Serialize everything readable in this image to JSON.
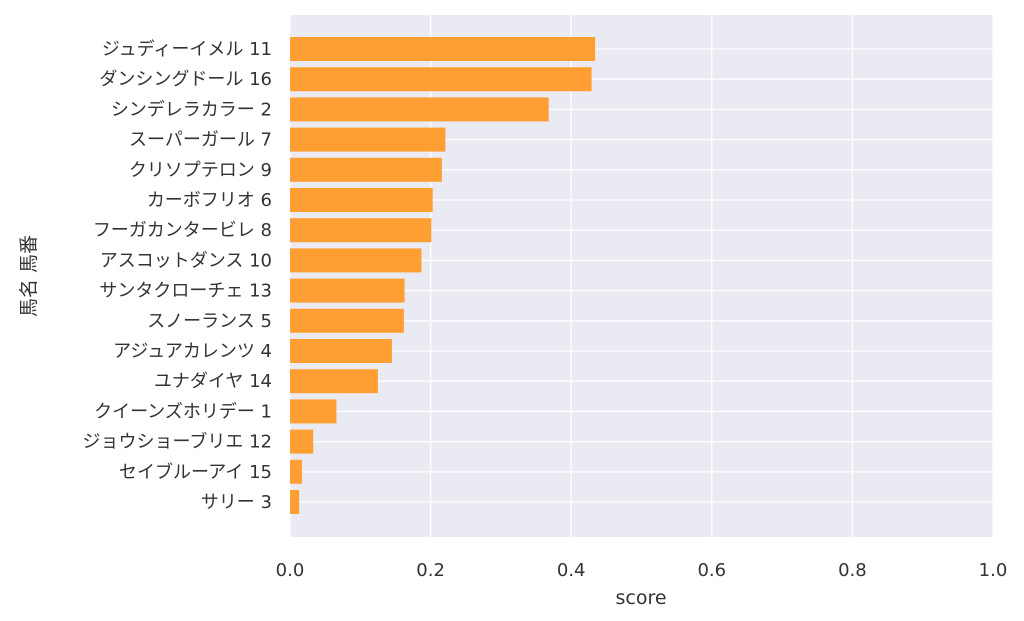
{
  "chart_data": {
    "type": "bar",
    "orientation": "horizontal",
    "xlabel": "score",
    "ylabel": "馬名 馬番",
    "xlim": [
      0,
      1.0
    ],
    "xticks": [
      "0.0",
      "0.2",
      "0.4",
      "0.6",
      "0.8",
      "1.0"
    ],
    "grid": true,
    "bar_color": "#ff9f33",
    "background_color": "#eaeaf2",
    "categories": [
      "ジュディーイメル 11",
      "ダンシングドール 16",
      "シンデレラカラー 2",
      "スーパーガール 7",
      "クリソプテロン 9",
      "カーボフリオ 6",
      "フーガカンタービレ 8",
      "アスコットダンス 10",
      "サンタクローチェ 13",
      "スノーランス 5",
      "アジュアカレンツ 4",
      "ユナダイヤ 14",
      "クイーンズホリデー 1",
      "ジョウショーブリエ 12",
      "セイブルーアイ 15",
      "サリー 3"
    ],
    "values": [
      0.434,
      0.429,
      0.368,
      0.221,
      0.216,
      0.203,
      0.201,
      0.187,
      0.163,
      0.162,
      0.145,
      0.125,
      0.066,
      0.033,
      0.017,
      0.013
    ]
  }
}
